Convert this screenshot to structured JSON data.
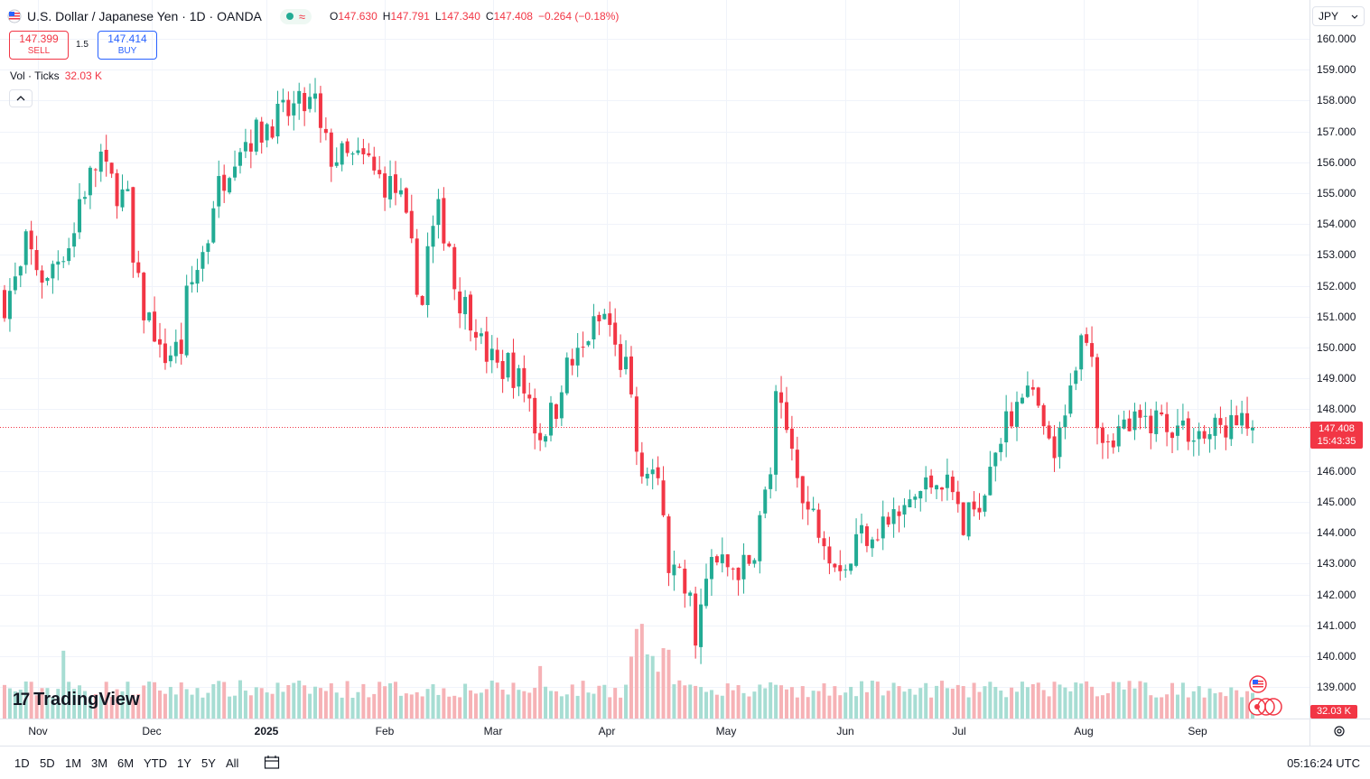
{
  "header": {
    "title": "U.S. Dollar / Japanese Yen · 1D · OANDA",
    "ohlc": {
      "o_label": "O",
      "o": "147.630",
      "h_label": "H",
      "h": "147.791",
      "l_label": "L",
      "l": "147.340",
      "c_label": "C",
      "c": "147.408",
      "change": "−0.264 (−0.18%)"
    },
    "status_glyph": "≈"
  },
  "trade": {
    "sell_price": "147.399",
    "sell_label": "SELL",
    "spread": "1.5",
    "buy_price": "147.414",
    "buy_label": "BUY"
  },
  "volume_legend": {
    "label": "Vol · Ticks",
    "value": "32.03 K"
  },
  "currency_selector": {
    "value": "JPY"
  },
  "current_price": {
    "price": "147.408",
    "countdown": "15:43:35"
  },
  "current_volume": "32.03 K",
  "y_ticks": [
    "160.000",
    "159.000",
    "158.000",
    "157.000",
    "156.000",
    "155.000",
    "154.000",
    "153.000",
    "152.000",
    "151.000",
    "150.000",
    "149.000",
    "148.000",
    "146.000",
    "145.000",
    "144.000",
    "143.000",
    "142.000",
    "141.000",
    "140.000",
    "139.000"
  ],
  "x_ticks": [
    {
      "label": "Nov",
      "bold": false
    },
    {
      "label": "Dec",
      "bold": false
    },
    {
      "label": "2025",
      "bold": true
    },
    {
      "label": "Feb",
      "bold": false
    },
    {
      "label": "Mar",
      "bold": false
    },
    {
      "label": "Apr",
      "bold": false
    },
    {
      "label": "May",
      "bold": false
    },
    {
      "label": "Jun",
      "bold": false
    },
    {
      "label": "Jul",
      "bold": false
    },
    {
      "label": "Aug",
      "bold": false
    },
    {
      "label": "Sep",
      "bold": false
    }
  ],
  "logo_text": "TradingView",
  "ranges": [
    "1D",
    "5D",
    "1M",
    "3M",
    "6M",
    "YTD",
    "1Y",
    "5Y",
    "All"
  ],
  "clock": "05:16:24 UTC",
  "colors": {
    "up": "#22ab94",
    "down": "#f23645",
    "up_vol": "#a7ddd3",
    "down_vol": "#f6b2b6",
    "grid": "#f0f3fa"
  },
  "chart_data": {
    "type": "candlestick",
    "symbol": "USDJPY",
    "interval": "1D",
    "ylim": [
      138.6,
      160.3
    ],
    "control_points": [
      {
        "date": "Oct 22",
        "close": 151.5
      },
      {
        "date": "Oct 28",
        "close": 153.3
      },
      {
        "date": "Nov 1",
        "close": 152.0
      },
      {
        "date": "Nov 7",
        "close": 153.4
      },
      {
        "date": "Nov 15",
        "close": 156.2
      },
      {
        "date": "Nov 22",
        "close": 154.7
      },
      {
        "date": "Nov 27",
        "close": 151.2
      },
      {
        "date": "Dec 2",
        "close": 149.7
      },
      {
        "date": "Dec 6",
        "close": 150.0
      },
      {
        "date": "Dec 13",
        "close": 153.6
      },
      {
        "date": "Dec 20",
        "close": 156.4
      },
      {
        "date": "Jan 3",
        "close": 157.6
      },
      {
        "date": "Jan 10",
        "close": 157.9
      },
      {
        "date": "Jan 15",
        "close": 156.2
      },
      {
        "date": "Jan 24",
        "close": 156.0
      },
      {
        "date": "Feb 3",
        "close": 154.7
      },
      {
        "date": "Feb 7",
        "close": 151.4
      },
      {
        "date": "Feb 12",
        "close": 154.3
      },
      {
        "date": "Feb 18",
        "close": 151.6
      },
      {
        "date": "Feb 27",
        "close": 149.3
      },
      {
        "date": "Mar 3",
        "close": 149.5
      },
      {
        "date": "Mar 11",
        "close": 147.2
      },
      {
        "date": "Mar 18",
        "close": 149.3
      },
      {
        "date": "Mar 27",
        "close": 151.0
      },
      {
        "date": "Apr 2",
        "close": 149.3
      },
      {
        "date": "Apr 4",
        "close": 146.7
      },
      {
        "date": "Apr 9",
        "close": 146.0
      },
      {
        "date": "Apr 14",
        "close": 143.0
      },
      {
        "date": "Apr 21",
        "close": 140.8
      },
      {
        "date": "Apr 24",
        "close": 143.0
      },
      {
        "date": "May 5",
        "close": 142.8
      },
      {
        "date": "May 9",
        "close": 146.0
      },
      {
        "date": "May 12",
        "close": 148.2
      },
      {
        "date": "May 19",
        "close": 144.9
      },
      {
        "date": "May 29",
        "close": 142.9
      },
      {
        "date": "Jun 3",
        "close": 144.0
      },
      {
        "date": "Jun 12",
        "close": 144.5
      },
      {
        "date": "Jun 23",
        "close": 146.0
      },
      {
        "date": "Jun 30",
        "close": 144.1
      },
      {
        "date": "Jul 7",
        "close": 146.6
      },
      {
        "date": "Jul 15",
        "close": 148.8
      },
      {
        "date": "Jul 23",
        "close": 146.5
      },
      {
        "date": "Jul 31",
        "close": 150.7
      },
      {
        "date": "Aug 5",
        "close": 147.2
      },
      {
        "date": "Aug 19",
        "close": 147.7
      },
      {
        "date": "Sep 1",
        "close": 147.1
      },
      {
        "date": "Sep 5",
        "close": 147.5
      },
      {
        "date": "Sep 12",
        "close": 147.4
      }
    ],
    "last_close": 147.408,
    "volume_spikes": [
      {
        "date": "Nov 6",
        "value": 53000
      },
      {
        "date": "Mar 11",
        "value": 41000
      },
      {
        "date": "Apr 4",
        "value": 70000
      },
      {
        "date": "Apr 7",
        "value": 74000
      },
      {
        "date": "Jul 31",
        "value": 29000
      }
    ],
    "volume_range": [
      0,
      80000
    ]
  }
}
